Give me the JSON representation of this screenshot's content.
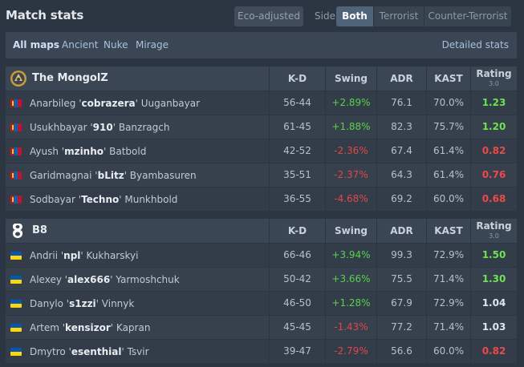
{
  "header": {
    "title": "Match stats",
    "eco_label": "Eco-adjusted",
    "side_label": "Side",
    "sides": [
      "Both",
      "Terrorist",
      "Counter-Terrorist"
    ],
    "active_side": "Both"
  },
  "maps": {
    "items": [
      "All maps",
      "Ancient",
      "Nuke",
      "Mirage"
    ],
    "active": "All maps",
    "detailed_label": "Detailed stats"
  },
  "columns": {
    "kd": "K-D",
    "swing": "Swing",
    "adr": "ADR",
    "kast": "KAST",
    "rating": "Rating",
    "rating_version": "3.0"
  },
  "teams": [
    {
      "name": "The MongolZ",
      "logo_icon": "mongolz-logo-icon",
      "flag": "mn",
      "players": [
        {
          "first": "Anarbileg '",
          "nick": "cobrazera",
          "last": "' Uuganbayar",
          "kd": "56-44",
          "swing": "+2.89%",
          "adr": "76.1",
          "kast": "70.0%",
          "rating": "1.23"
        },
        {
          "first": "Usukhbayar '",
          "nick": "910",
          "last": "' Banzragch",
          "kd": "61-45",
          "swing": "+1.88%",
          "adr": "82.3",
          "kast": "75.7%",
          "rating": "1.20"
        },
        {
          "first": "Ayush '",
          "nick": "mzinho",
          "last": "' Batbold",
          "kd": "42-52",
          "swing": "-2.36%",
          "adr": "67.4",
          "kast": "61.4%",
          "rating": "0.82"
        },
        {
          "first": "Garidmagnai '",
          "nick": "bLitz",
          "last": "' Byambasuren",
          "kd": "35-51",
          "swing": "-2.37%",
          "adr": "64.3",
          "kast": "61.4%",
          "rating": "0.76"
        },
        {
          "first": "Sodbayar '",
          "nick": "Techno",
          "last": "' Munkhbold",
          "kd": "36-55",
          "swing": "-4.68%",
          "adr": "69.2",
          "kast": "60.0%",
          "rating": "0.68"
        }
      ]
    },
    {
      "name": "B8",
      "logo_icon": "b8-logo-icon",
      "flag": "ua",
      "players": [
        {
          "first": "Andrii '",
          "nick": "npl",
          "last": "' Kukharskyi",
          "kd": "66-46",
          "swing": "+3.94%",
          "adr": "99.3",
          "kast": "72.9%",
          "rating": "1.50"
        },
        {
          "first": "Alexey '",
          "nick": "alex666",
          "last": "' Yarmoshchuk",
          "kd": "50-42",
          "swing": "+3.66%",
          "adr": "75.5",
          "kast": "71.4%",
          "rating": "1.30"
        },
        {
          "first": "Danylo '",
          "nick": "s1zzi",
          "last": "' Vinnyk",
          "kd": "46-50",
          "swing": "+1.28%",
          "adr": "67.9",
          "kast": "72.9%",
          "rating": "1.04"
        },
        {
          "first": "Artem '",
          "nick": "kensizor",
          "last": "' Kapran",
          "kd": "45-45",
          "swing": "-1.43%",
          "adr": "77.2",
          "kast": "71.4%",
          "rating": "1.03"
        },
        {
          "first": "Dmytro '",
          "nick": "esenthial",
          "last": "' Tsvir",
          "kd": "39-47",
          "swing": "-2.79%",
          "adr": "56.6",
          "kast": "60.0%",
          "rating": "0.82"
        }
      ]
    }
  ],
  "colors": {
    "positive": "#5bd04a",
    "negative": "#e24646",
    "rating_good": "#6ee34f",
    "rating_bad": "#f04848"
  }
}
